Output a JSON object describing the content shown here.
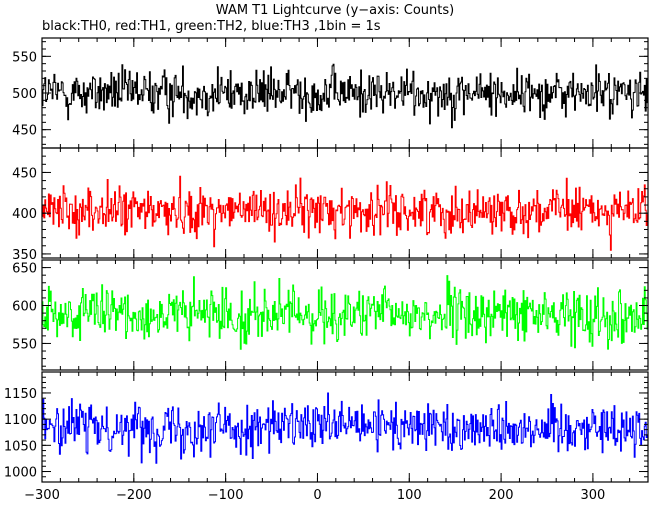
{
  "chart_data": {
    "type": "line",
    "title": "WAM T1 Lightcurve (y−axis: Counts)",
    "subtitle": "black:TH0, red:TH1, green:TH2, blue:TH3 ,1bin = 1s",
    "xlim": [
      -300,
      360
    ],
    "x_ticks": [
      -300,
      -200,
      -100,
      0,
      100,
      200,
      300
    ],
    "x_tick_labels": [
      "−300",
      "−200",
      "−100",
      "0",
      "100",
      "200",
      "300"
    ],
    "panels": [
      {
        "name": "TH0",
        "color": "#000000",
        "ylim": [
          425,
          575
        ],
        "y_ticks": [
          450,
          500,
          550
        ],
        "mean": 500,
        "spread": 22
      },
      {
        "name": "TH1",
        "color": "#ff0000",
        "ylim": [
          345,
          480
        ],
        "y_ticks": [
          350,
          400,
          450
        ],
        "mean": 403,
        "spread": 20
      },
      {
        "name": "TH2",
        "color": "#00ff00",
        "ylim": [
          515,
          660
        ],
        "y_ticks": [
          550,
          600,
          650
        ],
        "mean": 588,
        "spread": 24
      },
      {
        "name": "TH3",
        "color": "#0000ff",
        "ylim": [
          980,
          1190
        ],
        "y_ticks": [
          1000,
          1050,
          1100,
          1150
        ],
        "mean": 1085,
        "spread": 33
      }
    ]
  }
}
